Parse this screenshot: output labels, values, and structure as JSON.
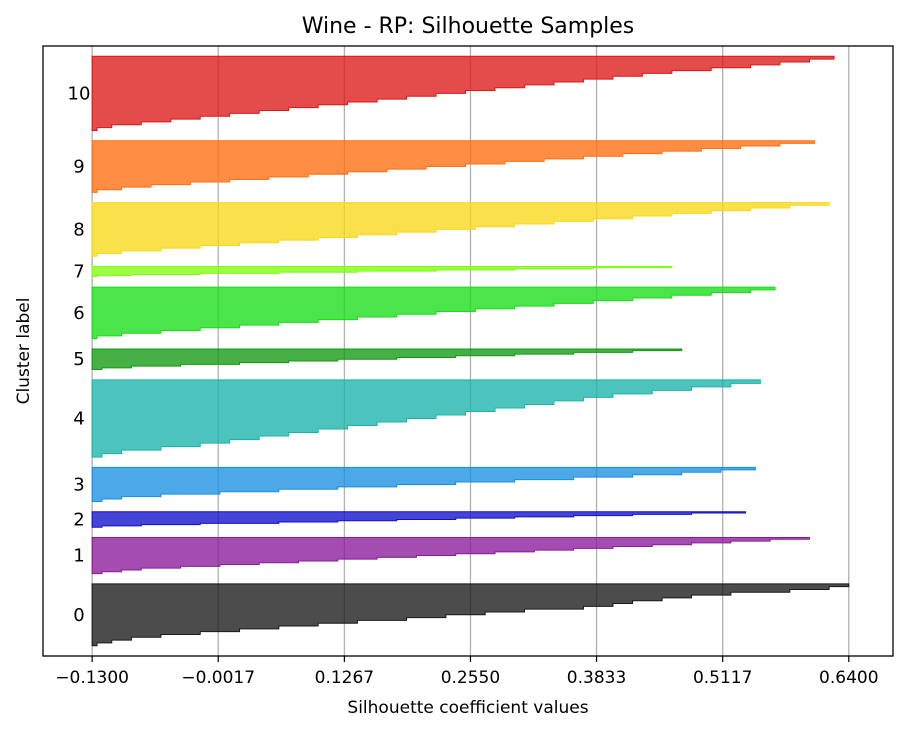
{
  "chart_data": {
    "type": "area",
    "title": "Wine - RP: Silhouette Samples",
    "xlabel": "Silhouette coefficient values",
    "ylabel": "Cluster label",
    "x_ticks": [
      "−0.1300",
      "−0.0017",
      "0.1267",
      "0.2550",
      "0.3833",
      "0.5117",
      "0.6400"
    ],
    "xlim": [
      -0.18,
      0.685
    ],
    "grid": "vertical",
    "clusters": [
      {
        "label": "0",
        "color": "#1a1a1a",
        "size": 60,
        "values": [
          0.64,
          0.62,
          0.58,
          0.52,
          0.48,
          0.45,
          0.42,
          0.4,
          0.37,
          0.31,
          0.27,
          0.23,
          0.19,
          0.14,
          0.1,
          0.06,
          0.02,
          -0.02,
          -0.06,
          -0.09,
          -0.11,
          -0.125
        ]
      },
      {
        "label": "1",
        "color": "#8b1a9a",
        "size": 35,
        "values": [
          0.6,
          0.56,
          0.52,
          0.48,
          0.44,
          0.4,
          0.36,
          0.32,
          0.28,
          0.24,
          0.2,
          0.16,
          0.12,
          0.08,
          0.04,
          0.0,
          -0.04,
          -0.08,
          -0.1,
          -0.12
        ]
      },
      {
        "label": "2",
        "color": "#1010cc",
        "size": 15,
        "values": [
          0.535,
          0.48,
          0.42,
          0.36,
          0.3,
          0.24,
          0.18,
          0.12,
          0.06,
          -0.02,
          -0.08,
          -0.12
        ]
      },
      {
        "label": "3",
        "color": "#1a8fe0",
        "size": 33,
        "values": [
          0.545,
          0.51,
          0.47,
          0.42,
          0.36,
          0.3,
          0.24,
          0.18,
          0.12,
          0.06,
          0.0,
          -0.06,
          -0.1,
          -0.12
        ]
      },
      {
        "label": "4",
        "color": "#1ab3aa",
        "size": 75,
        "values": [
          0.55,
          0.52,
          0.48,
          0.44,
          0.4,
          0.37,
          0.34,
          0.31,
          0.28,
          0.25,
          0.22,
          0.19,
          0.16,
          0.13,
          0.1,
          0.07,
          0.04,
          0.01,
          -0.02,
          -0.06,
          -0.1,
          -0.12
        ]
      },
      {
        "label": "5",
        "color": "#129a12",
        "size": 20,
        "values": [
          0.47,
          0.42,
          0.36,
          0.3,
          0.24,
          0.18,
          0.12,
          0.07,
          0.02,
          -0.04,
          -0.09,
          -0.12
        ]
      },
      {
        "label": "6",
        "color": "#18dd18",
        "size": 50,
        "values": [
          0.565,
          0.54,
          0.5,
          0.46,
          0.42,
          0.38,
          0.34,
          0.3,
          0.26,
          0.22,
          0.18,
          0.14,
          0.1,
          0.06,
          0.02,
          -0.02,
          -0.06,
          -0.1,
          -0.125
        ]
      },
      {
        "label": "7",
        "color": "#80ff10",
        "size": 10,
        "values": [
          0.46,
          0.38,
          0.3,
          0.22,
          0.14,
          0.06,
          -0.02,
          -0.09,
          -0.125
        ]
      },
      {
        "label": "8",
        "color": "#f8d818",
        "size": 52,
        "values": [
          0.62,
          0.58,
          0.54,
          0.5,
          0.46,
          0.42,
          0.38,
          0.34,
          0.3,
          0.26,
          0.22,
          0.18,
          0.14,
          0.1,
          0.06,
          0.02,
          -0.02,
          -0.06,
          -0.1,
          -0.125
        ]
      },
      {
        "label": "9",
        "color": "#ff6e10",
        "size": 50,
        "values": [
          0.605,
          0.57,
          0.53,
          0.49,
          0.45,
          0.41,
          0.37,
          0.33,
          0.29,
          0.25,
          0.21,
          0.17,
          0.13,
          0.09,
          0.05,
          0.01,
          -0.03,
          -0.07,
          -0.1,
          -0.125
        ]
      },
      {
        "label": "10",
        "color": "#dd1818",
        "size": 72,
        "values": [
          0.625,
          0.6,
          0.57,
          0.54,
          0.5,
          0.46,
          0.43,
          0.4,
          0.37,
          0.34,
          0.31,
          0.28,
          0.25,
          0.22,
          0.19,
          0.16,
          0.13,
          0.1,
          0.07,
          0.04,
          0.01,
          -0.02,
          -0.05,
          -0.08,
          -0.11,
          -0.125
        ]
      }
    ]
  }
}
